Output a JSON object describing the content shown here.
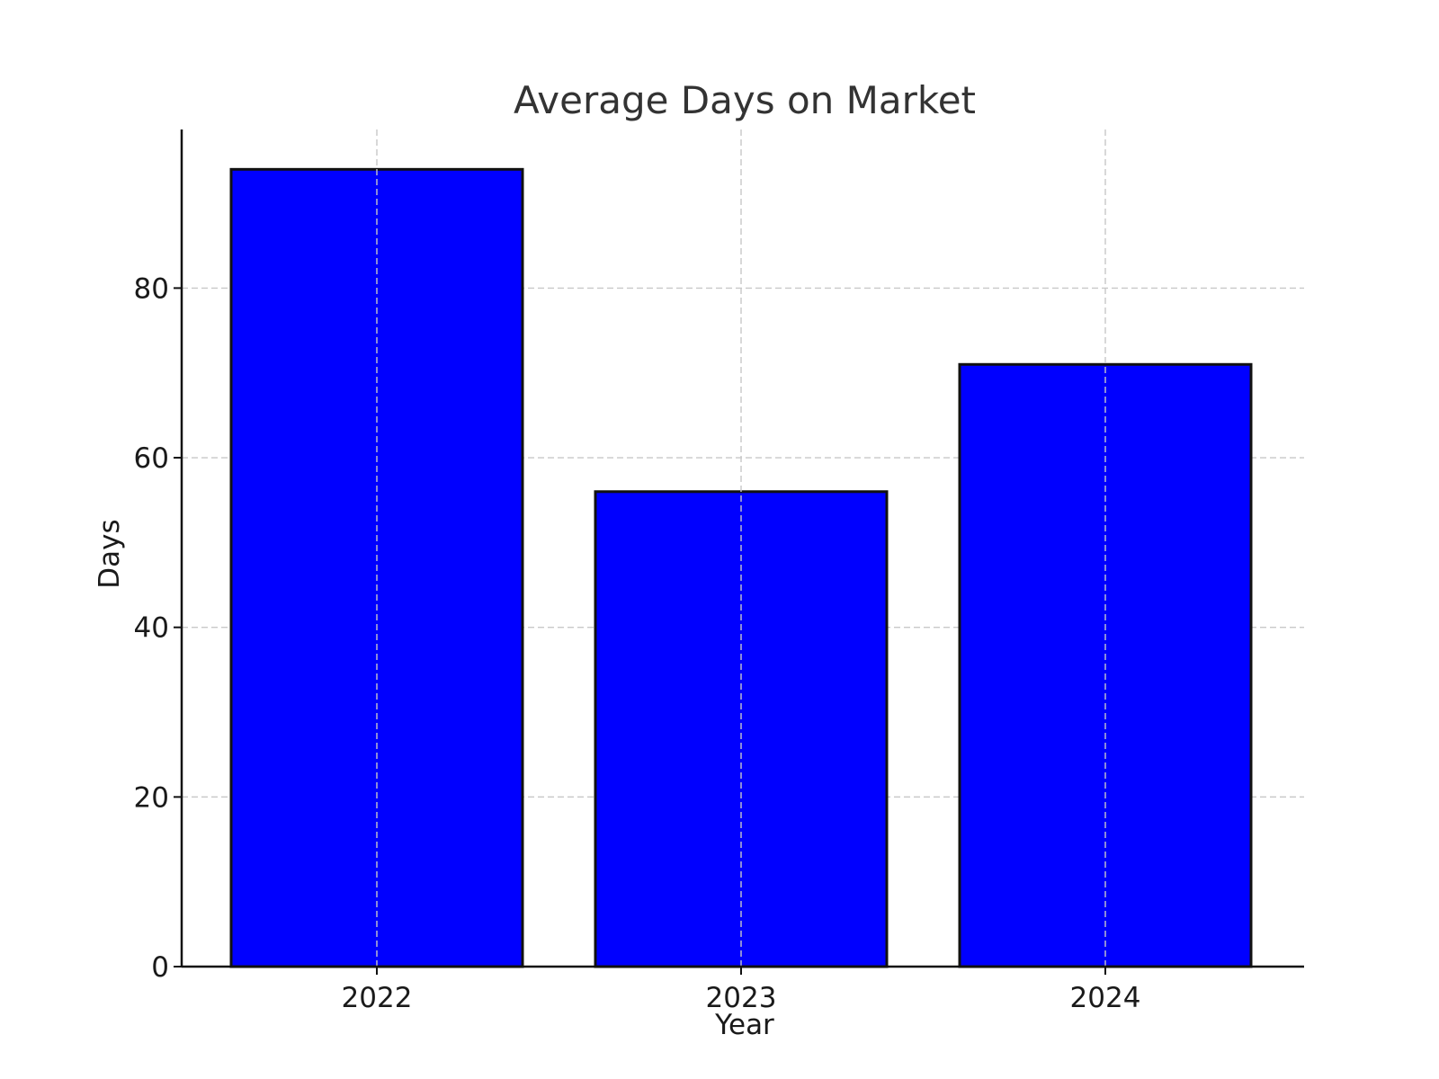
{
  "chart_data": {
    "type": "bar",
    "title": "Average Days on Market",
    "xlabel": "Year",
    "ylabel": "Days",
    "categories": [
      "2022",
      "2023",
      "2024"
    ],
    "values": [
      94,
      56,
      71
    ],
    "ylim": [
      0,
      98.7
    ],
    "yticks": [
      0,
      20,
      40,
      60,
      80
    ],
    "grid": true,
    "bar_color": "#0000ff",
    "bar_edge_color": "#111111"
  }
}
